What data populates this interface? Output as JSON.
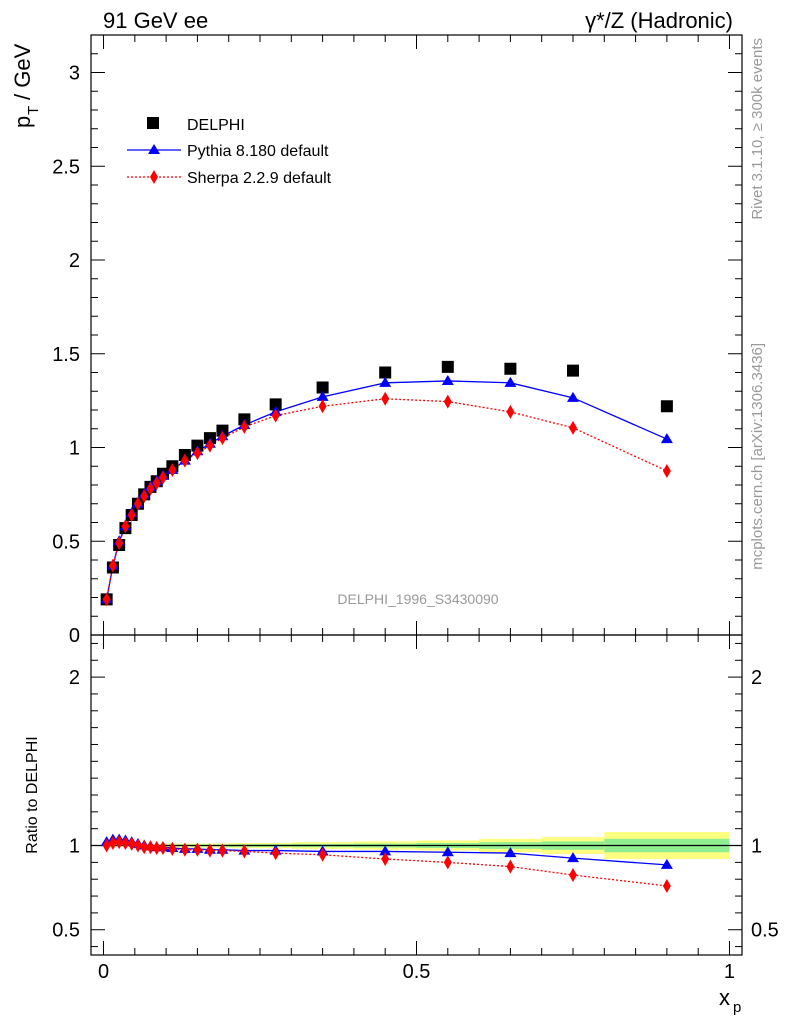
{
  "header": {
    "left": "91 GeV ee",
    "right": "γ*/Z (Hadronic)"
  },
  "side_labels": {
    "rivet": "Rivet 3.1.10, ≥ 300k events",
    "mcplots": "mcplots.cern.ch [arXiv:1306.3436]"
  },
  "watermark": "DELPHI_1996_S3430090",
  "colors": {
    "data": "#000000",
    "pythia": "#0000ff",
    "sherpa": "#ff0000",
    "band_green": "#90ee90",
    "band_yellow": "#ffff80"
  },
  "chart_data": [
    {
      "type": "scatter",
      "panel": "main",
      "ylabel_main": "p",
      "ylabel_sub": "T",
      "ylabel_unit": "/ GeV",
      "xlim": [
        -0.02,
        1.02
      ],
      "ylim": [
        0,
        3.2
      ],
      "yticks": [
        0,
        0.5,
        1,
        1.5,
        2,
        2.5,
        3
      ],
      "ytick_labels": [
        "0",
        "0.5",
        "1",
        "1.5",
        "2",
        "2.5",
        "3"
      ],
      "legend_position": "top-left",
      "x": [
        0.005,
        0.015,
        0.025,
        0.035,
        0.045,
        0.055,
        0.065,
        0.075,
        0.085,
        0.095,
        0.11,
        0.13,
        0.15,
        0.17,
        0.19,
        0.225,
        0.275,
        0.35,
        0.45,
        0.55,
        0.65,
        0.75,
        0.9
      ],
      "series": [
        {
          "name": "DELPHI",
          "style": "square",
          "values": [
            0.19,
            0.36,
            0.48,
            0.57,
            0.64,
            0.7,
            0.75,
            0.79,
            0.82,
            0.86,
            0.9,
            0.96,
            1.01,
            1.05,
            1.09,
            1.15,
            1.23,
            1.32,
            1.4,
            1.43,
            1.42,
            1.41,
            1.22
          ]
        },
        {
          "name": "Pythia 8.180 default",
          "style": "triangle-line",
          "values": [
            0.19,
            0.37,
            0.5,
            0.58,
            0.65,
            0.7,
            0.75,
            0.79,
            0.82,
            0.85,
            0.88,
            0.93,
            0.98,
            1.02,
            1.06,
            1.12,
            1.19,
            1.27,
            1.345,
            1.355,
            1.345,
            1.265,
            1.045
          ]
        },
        {
          "name": "Sherpa 2.2.9 default",
          "style": "diamond-dotted",
          "values": [
            0.19,
            0.37,
            0.49,
            0.58,
            0.64,
            0.7,
            0.74,
            0.78,
            0.81,
            0.84,
            0.88,
            0.93,
            0.97,
            1.01,
            1.05,
            1.11,
            1.17,
            1.22,
            1.26,
            1.245,
            1.19,
            1.105,
            0.875
          ]
        }
      ]
    },
    {
      "type": "scatter",
      "panel": "ratio",
      "ylabel": "Ratio to DELPHI",
      "xlabel_main": "x",
      "xlabel_sub": "p",
      "xlim": [
        -0.02,
        1.02
      ],
      "ylim": [
        0.35,
        2.25
      ],
      "yticks": [
        0.5,
        1,
        2
      ],
      "ytick_labels": [
        "0.5",
        "1",
        "2"
      ],
      "xticks": [
        0,
        0.5,
        1
      ],
      "xtick_labels": [
        "0",
        "0.5",
        "1"
      ],
      "reference": 1.0,
      "bands": {
        "edges": [
          0.0,
          0.1,
          0.2,
          0.3,
          0.4,
          0.5,
          0.6,
          0.7,
          0.8,
          1.0
        ],
        "stat_halfwidth": [
          0.004,
          0.006,
          0.008,
          0.01,
          0.012,
          0.015,
          0.02,
          0.025,
          0.04
        ],
        "total_halfwidth": [
          0.008,
          0.012,
          0.015,
          0.02,
          0.025,
          0.03,
          0.04,
          0.05,
          0.08
        ]
      },
      "x": [
        0.005,
        0.015,
        0.025,
        0.035,
        0.045,
        0.055,
        0.065,
        0.075,
        0.085,
        0.095,
        0.11,
        0.13,
        0.15,
        0.17,
        0.19,
        0.225,
        0.275,
        0.35,
        0.45,
        0.55,
        0.65,
        0.75,
        0.9
      ],
      "series": [
        {
          "name": "Pythia 8.180 default",
          "style": "triangle-line",
          "values": [
            1.02,
            1.035,
            1.035,
            1.03,
            1.02,
            1.01,
            1.0,
            0.995,
            0.99,
            0.99,
            0.985,
            0.98,
            0.98,
            0.975,
            0.975,
            0.97,
            0.97,
            0.965,
            0.965,
            0.96,
            0.955,
            0.925,
            0.885
          ]
        },
        {
          "name": "Sherpa 2.2.9 default",
          "style": "diamond-dotted",
          "values": [
            1.0,
            1.015,
            1.02,
            1.015,
            1.01,
            1.0,
            0.99,
            0.99,
            0.985,
            0.985,
            0.98,
            0.975,
            0.975,
            0.97,
            0.97,
            0.965,
            0.955,
            0.945,
            0.92,
            0.9,
            0.875,
            0.825,
            0.76
          ]
        }
      ]
    }
  ]
}
